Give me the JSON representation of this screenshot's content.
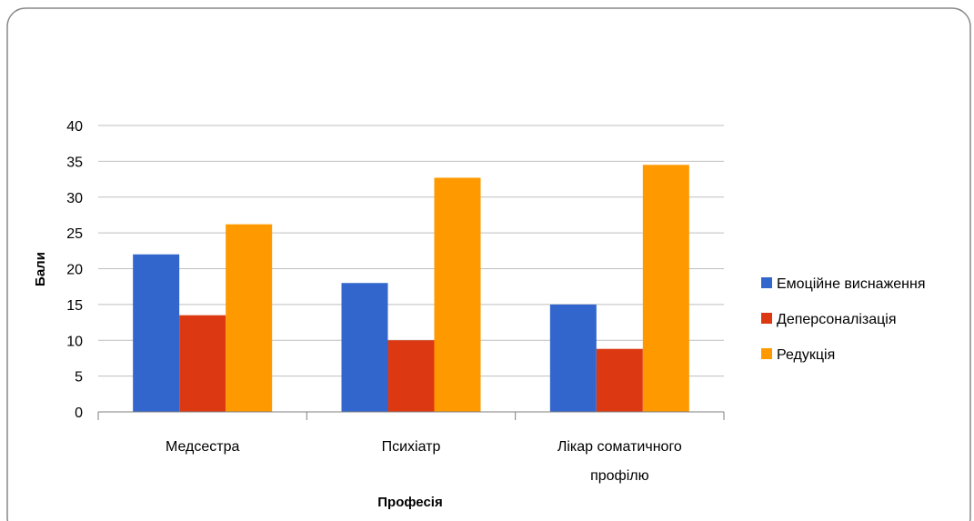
{
  "chart_data": {
    "type": "bar",
    "title": "",
    "xlabel": "Професія",
    "ylabel": "Бали",
    "ylim": [
      0,
      40
    ],
    "ytick_step": 5,
    "grid": true,
    "legend_position": "right",
    "categories": [
      [
        "Медсестра"
      ],
      [
        "Психіатр"
      ],
      [
        "Лікар соматичного",
        "профілю"
      ]
    ],
    "series": [
      {
        "name": "Емоційне виснаження",
        "color": "#3366cc",
        "values": [
          22,
          18,
          15
        ]
      },
      {
        "name": "Деперсоналізація",
        "color": "#dc3912",
        "values": [
          13.5,
          10,
          8.8
        ]
      },
      {
        "name": "Редукція",
        "color": "#ff9900",
        "values": [
          26.2,
          32.7,
          34.5
        ]
      }
    ]
  }
}
